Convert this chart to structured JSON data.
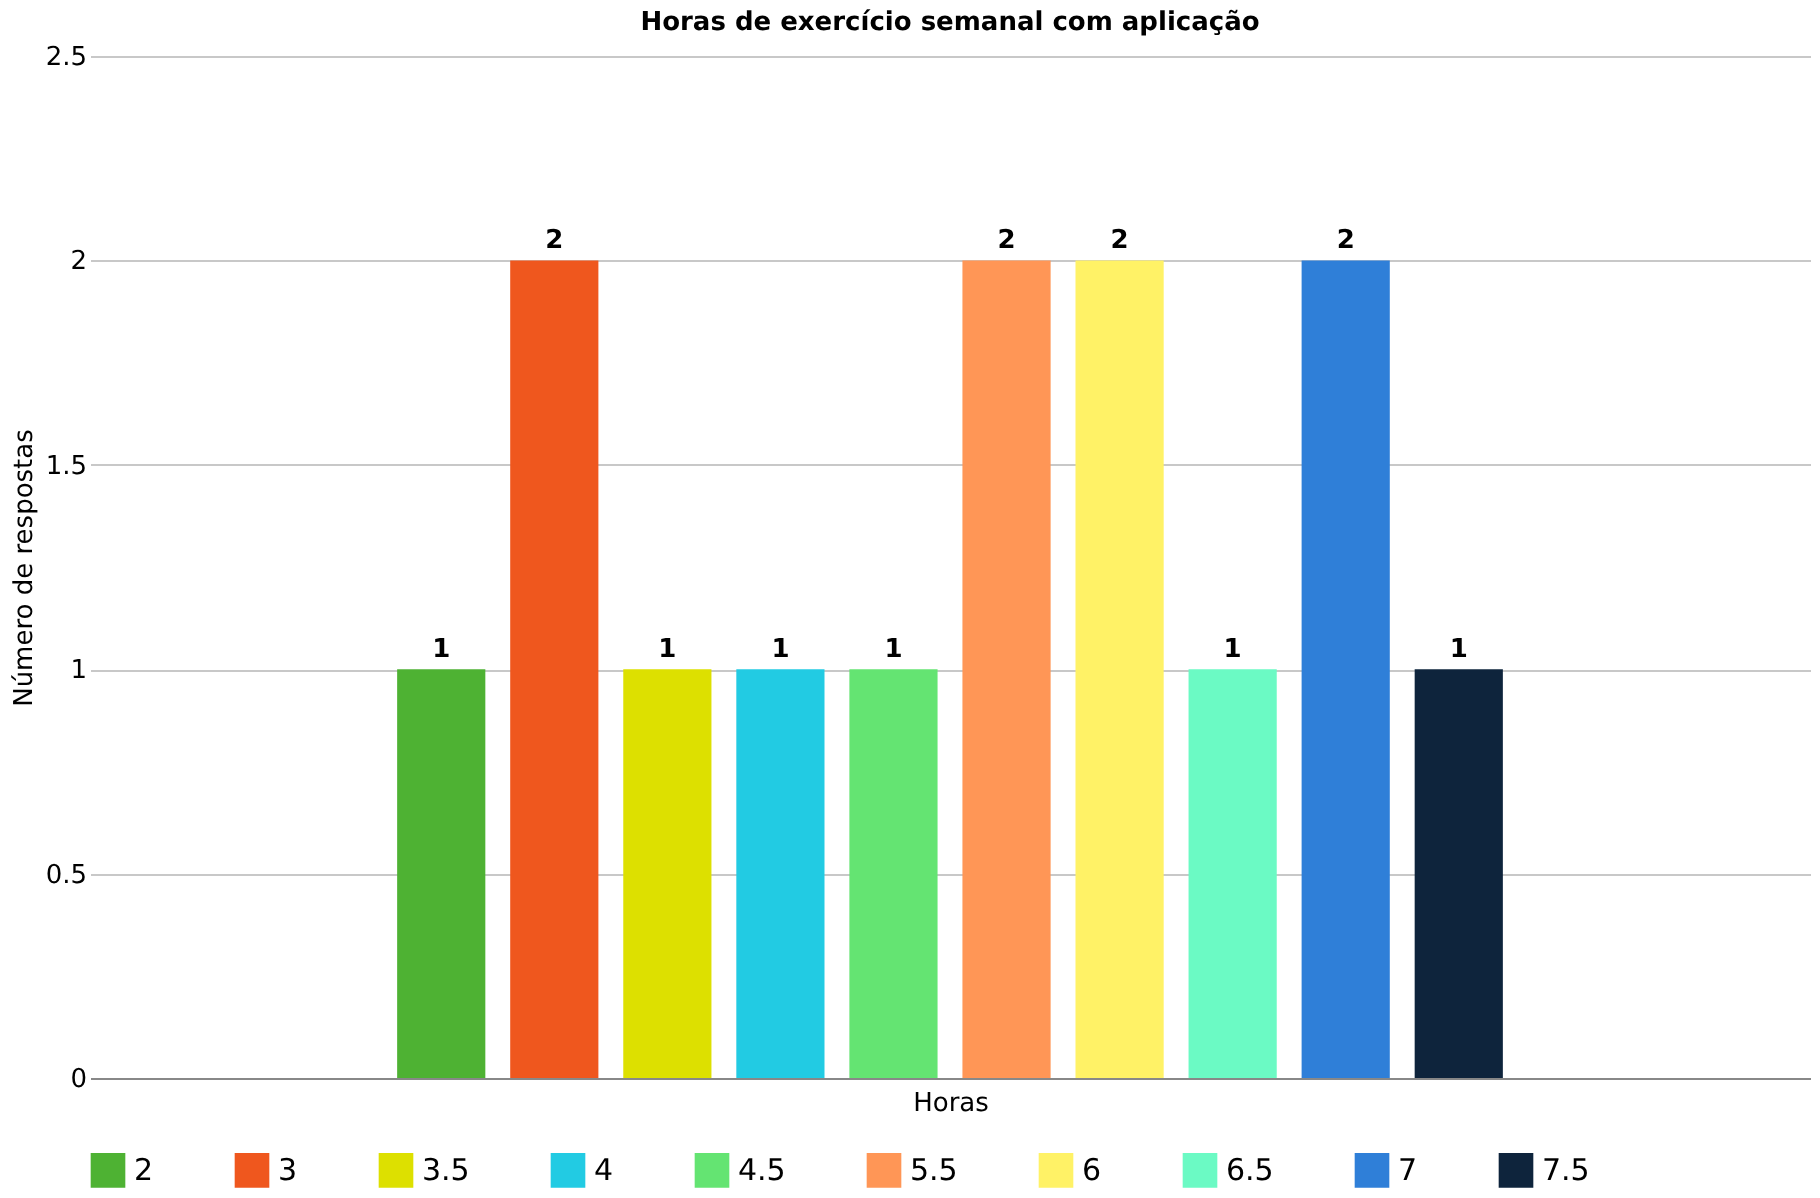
{
  "chart_data": {
    "type": "bar",
    "title": "Horas de exercício semanal com aplicação",
    "xlabel": "Horas",
    "ylabel": "Número de respostas",
    "categories": [
      null
    ],
    "series": [
      {
        "name": "2",
        "color": "#4eb233",
        "values": [
          1
        ]
      },
      {
        "name": "3",
        "color": "#ef571e",
        "values": [
          2
        ]
      },
      {
        "name": "3.5",
        "color": "#dde000",
        "values": [
          1
        ]
      },
      {
        "name": "4",
        "color": "#22cbe3",
        "values": [
          1
        ]
      },
      {
        "name": "4.5",
        "color": "#64e472",
        "values": [
          1
        ]
      },
      {
        "name": "5.5",
        "color": "#ff9656",
        "values": [
          2
        ]
      },
      {
        "name": "6",
        "color": "#fff266",
        "values": [
          2
        ]
      },
      {
        "name": "6.5",
        "color": "#6bfac4",
        "values": [
          1
        ]
      },
      {
        "name": "7",
        "color": "#2f7fd8",
        "values": [
          2
        ]
      },
      {
        "name": "7.5",
        "color": "#0e243c",
        "values": [
          1
        ]
      }
    ],
    "ylim": [
      0,
      2.5
    ],
    "yticks": [
      0,
      0.5,
      1,
      1.5,
      2,
      2.5
    ],
    "grid": "y",
    "legend": "bottom",
    "data_labels": true
  }
}
